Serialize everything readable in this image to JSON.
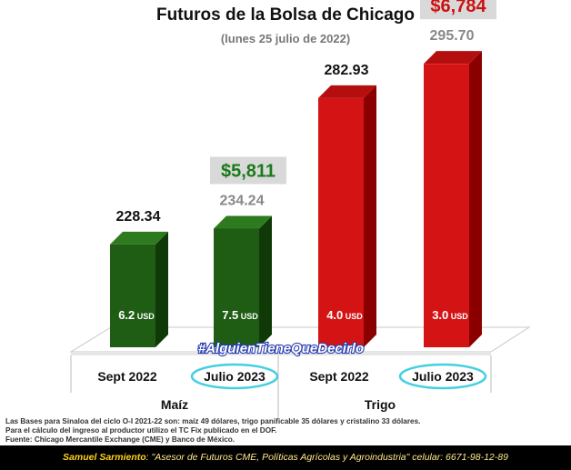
{
  "title": "Futuros de la Bolsa de Chicago",
  "subtitle": "(lunes 25 julio de 2022)",
  "chart_data": {
    "type": "bar",
    "style": "3d",
    "categories": [
      "Sept 2022",
      "Julio 2023",
      "Sept 2022",
      "Julio 2023"
    ],
    "groups": [
      {
        "label": "Maíz",
        "categories": [
          "Sept 2022",
          "Julio 2023"
        ]
      },
      {
        "label": "Trigo",
        "categories": [
          "Sept 2022",
          "Julio 2023"
        ]
      }
    ],
    "values": [
      228.34,
      234.24,
      282.93,
      295.7
    ],
    "value_labels": [
      "228.34",
      "234.24",
      "282.93",
      "295.70"
    ],
    "inner_labels": [
      "6.2",
      "7.5",
      "4.0",
      "3.0"
    ],
    "inner_unit": "USD",
    "price_callouts": [
      {
        "index": 1,
        "text": "$5,811",
        "color": "#1a7a1a"
      },
      {
        "index": 3,
        "text": "$6,784",
        "color": "#cc1111"
      }
    ],
    "highlighted_categories": [
      1,
      3
    ],
    "colors": [
      "#1f5c14",
      "#1f5c14",
      "#d41414",
      "#d41414"
    ],
    "side_colors": [
      "#0f3a08",
      "#0f3a08",
      "#8a0000",
      "#8a0000"
    ],
    "top_colors": [
      "#2e7a1e",
      "#2e7a1e",
      "#b50e0e",
      "#b50e0e"
    ],
    "grid": false,
    "watermark": "#AlguienTieneQueDecirlo"
  },
  "notes": [
    "Las Bases para Sinaloa del ciclo O-I 2021-22 son: maíz 49 dólares, trigo panificable 35 dólares y cristalino 33 dólares.",
    "Para el cálculo del ingreso al productor utilizo el TC Fix publicado en el DOF.",
    "Fuente: Chicago Mercantile Exchange (CME) y Banco de México."
  ],
  "footer": {
    "name": "Samuel Sarmiento",
    "text": ": \"Asesor de Futuros CME, Políticas Agrícolas y Agroindustria\"  celular: 6671-98-12-89"
  }
}
